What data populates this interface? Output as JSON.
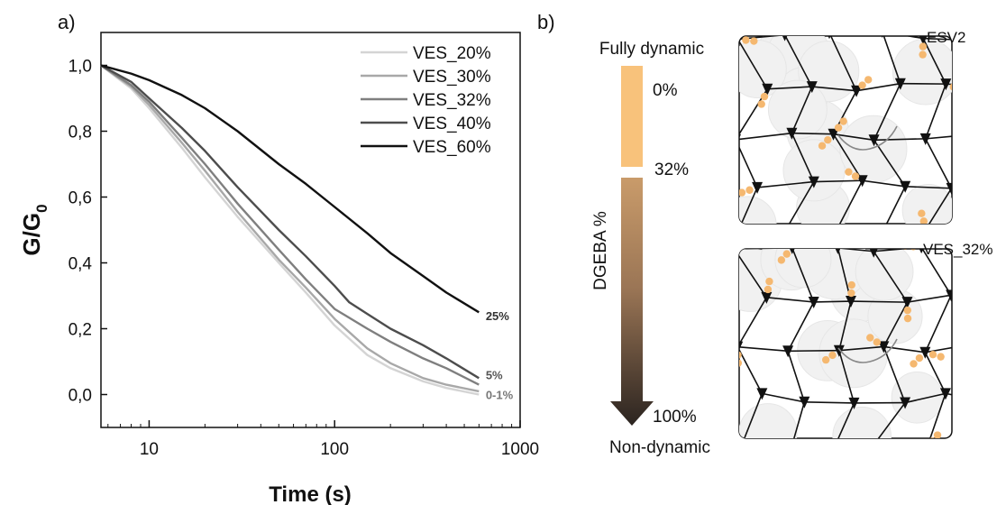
{
  "panel_a_label": "a)",
  "panel_b_label": "b)",
  "chart_data": {
    "type": "line",
    "title": "",
    "xlabel": "Time (s)",
    "ylabel": "G/G0",
    "ylabel_main": "G/G",
    "ylabel_sub": "0",
    "xscale": "log",
    "xlim": [
      5.5,
      1000
    ],
    "ylim": [
      -0.1,
      1.1
    ],
    "xticks": [
      10,
      100,
      1000
    ],
    "xtick_labels": [
      "10",
      "100",
      "1000"
    ],
    "yticks": [
      0.0,
      0.2,
      0.4,
      0.6,
      0.8,
      1.0
    ],
    "ytick_labels": [
      "0,0",
      "0,2",
      "0,4",
      "0,6",
      "0,8",
      "1,0"
    ],
    "grid": false,
    "legend_position": "top-right",
    "series": [
      {
        "name": "VES_20%",
        "color": "#d4d4d4",
        "x": [
          5.5,
          8,
          10,
          15,
          20,
          30,
          50,
          70,
          100,
          150,
          200,
          300,
          400,
          600
        ],
        "y": [
          1.0,
          0.93,
          0.87,
          0.75,
          0.66,
          0.54,
          0.4,
          0.31,
          0.21,
          0.12,
          0.08,
          0.04,
          0.02,
          0.0
        ]
      },
      {
        "name": "VES_30%",
        "color": "#a8a8a8",
        "x": [
          5.5,
          8,
          10,
          15,
          20,
          30,
          50,
          70,
          100,
          150,
          200,
          300,
          400,
          600
        ],
        "y": [
          1.0,
          0.935,
          0.88,
          0.765,
          0.68,
          0.555,
          0.41,
          0.325,
          0.23,
          0.14,
          0.095,
          0.05,
          0.03,
          0.01
        ]
      },
      {
        "name": "VES_32%",
        "color": "#7f7f7f",
        "x": [
          5.5,
          8,
          10,
          15,
          20,
          30,
          50,
          70,
          100,
          150,
          200,
          300,
          400,
          600
        ],
        "y": [
          1.0,
          0.94,
          0.89,
          0.78,
          0.7,
          0.58,
          0.44,
          0.35,
          0.26,
          0.2,
          0.16,
          0.11,
          0.08,
          0.03
        ]
      },
      {
        "name": "VES_40%",
        "color": "#4d4d4d",
        "x": [
          5.5,
          8,
          10,
          15,
          20,
          30,
          50,
          70,
          100,
          120,
          150,
          200,
          300,
          400,
          600
        ],
        "y": [
          1.0,
          0.95,
          0.9,
          0.81,
          0.74,
          0.63,
          0.5,
          0.42,
          0.33,
          0.28,
          0.245,
          0.2,
          0.15,
          0.11,
          0.05
        ]
      },
      {
        "name": "VES_60%",
        "color": "#111111",
        "x": [
          5.5,
          8,
          10,
          15,
          20,
          30,
          50,
          70,
          100,
          150,
          200,
          300,
          400,
          600
        ],
        "y": [
          1.0,
          0.975,
          0.955,
          0.91,
          0.87,
          0.8,
          0.7,
          0.64,
          0.57,
          0.49,
          0.43,
          0.36,
          0.31,
          0.25
        ]
      }
    ],
    "annotations": [
      {
        "text": "25%",
        "x": 610,
        "y": 0.24,
        "color": "#333333"
      },
      {
        "text": "5%",
        "x": 610,
        "y": 0.06,
        "color": "#555555"
      },
      {
        "text": "0-1%",
        "x": 610,
        "y": 0.0,
        "color": "#777777"
      }
    ]
  },
  "schematic": {
    "top_label": "Fully dynamic",
    "bottom_label": "Non-dynamic",
    "axis_label": "DGEBA %",
    "level_labels": [
      "0%",
      "32%",
      "100%"
    ],
    "segment_color": "#f8c27b",
    "arrow_top_color": "#c99b6a",
    "arrow_bottom_color": "#2b2420",
    "network_labels": [
      "ESV2",
      "VES_32%"
    ],
    "bead_color": "#f5b870"
  }
}
